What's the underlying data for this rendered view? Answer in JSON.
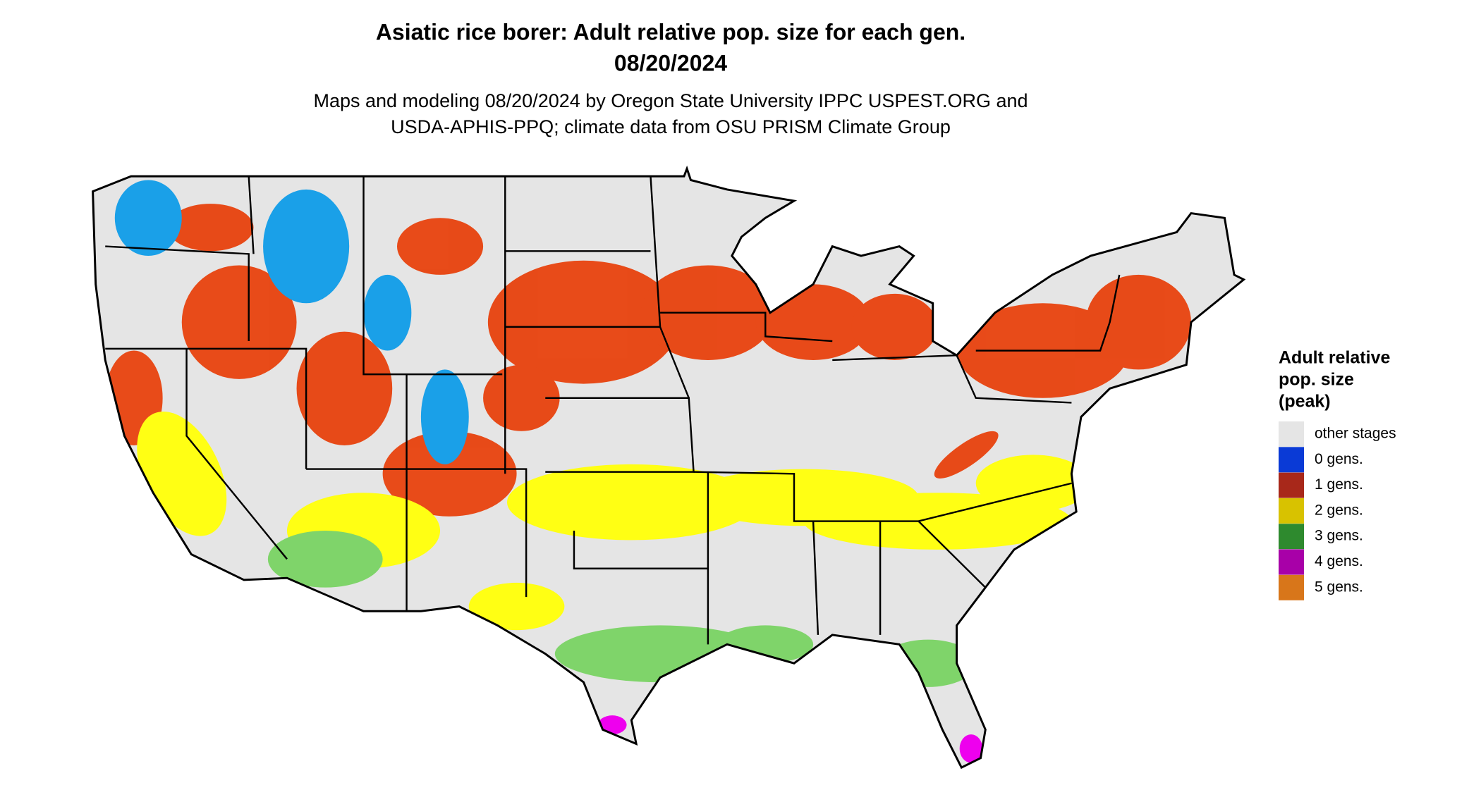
{
  "header": {
    "title": [
      "Asiatic rice borer: Adult relative pop. size for each gen.",
      "08/20/2024"
    ],
    "subtitle": [
      "Maps and modeling 08/20/2024 by Oregon State University IPPC USPEST.ORG and",
      "USDA-APHIS-PPQ; climate data from OSU PRISM Climate Group"
    ]
  },
  "legend": {
    "title": [
      "Adult relative",
      "pop. size",
      "(peak)"
    ],
    "items": [
      {
        "label": "other stages",
        "color": "#e5e5e5"
      },
      {
        "label": "0 gens.",
        "color": "#0a3ad6"
      },
      {
        "label": "1 gens.",
        "color": "#a8281a"
      },
      {
        "label": "2 gens.",
        "color": "#d8c200"
      },
      {
        "label": "3 gens.",
        "color": "#2e8a2e"
      },
      {
        "label": "4 gens.",
        "color": "#a800a8"
      },
      {
        "label": "5 gens.",
        "color": "#d8761a"
      }
    ]
  }
}
